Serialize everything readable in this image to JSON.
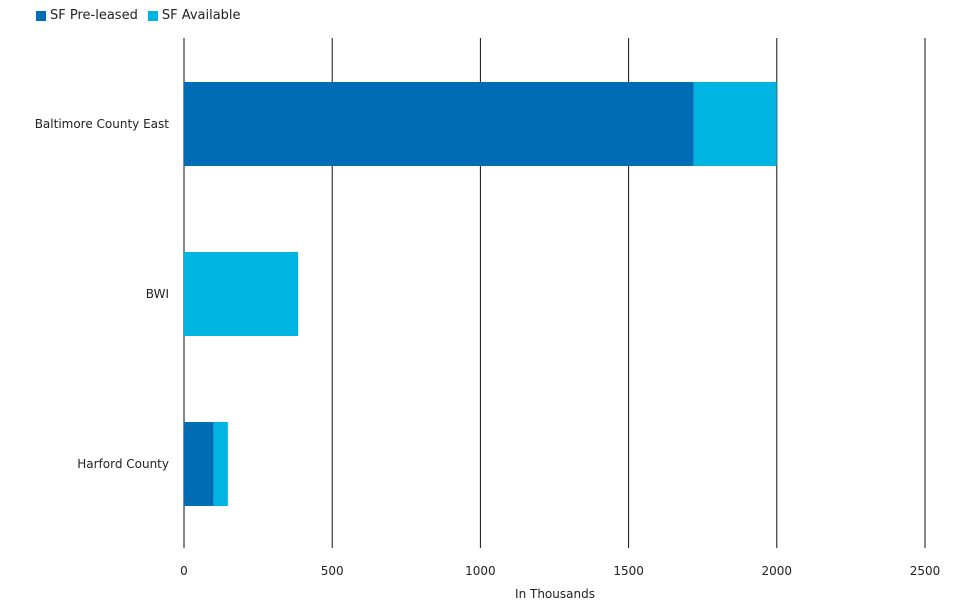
{
  "chart_data": {
    "type": "bar",
    "orientation": "horizontal",
    "stacked": true,
    "categories": [
      "Baltimore County East",
      "BWI",
      "Harford County"
    ],
    "series": [
      {
        "name": "SF Pre-leased",
        "values": [
          1720,
          0,
          100
        ],
        "color": "#006cb5"
      },
      {
        "name": "SF Available",
        "values": [
          280,
          385,
          48
        ],
        "color": "#00b5e2"
      }
    ],
    "xlabel": "In Thousands",
    "xlim": [
      0,
      2500
    ],
    "xticks": [
      0,
      500,
      1000,
      1500,
      2000,
      2500
    ],
    "grid": true,
    "legend_position": "top-left"
  }
}
